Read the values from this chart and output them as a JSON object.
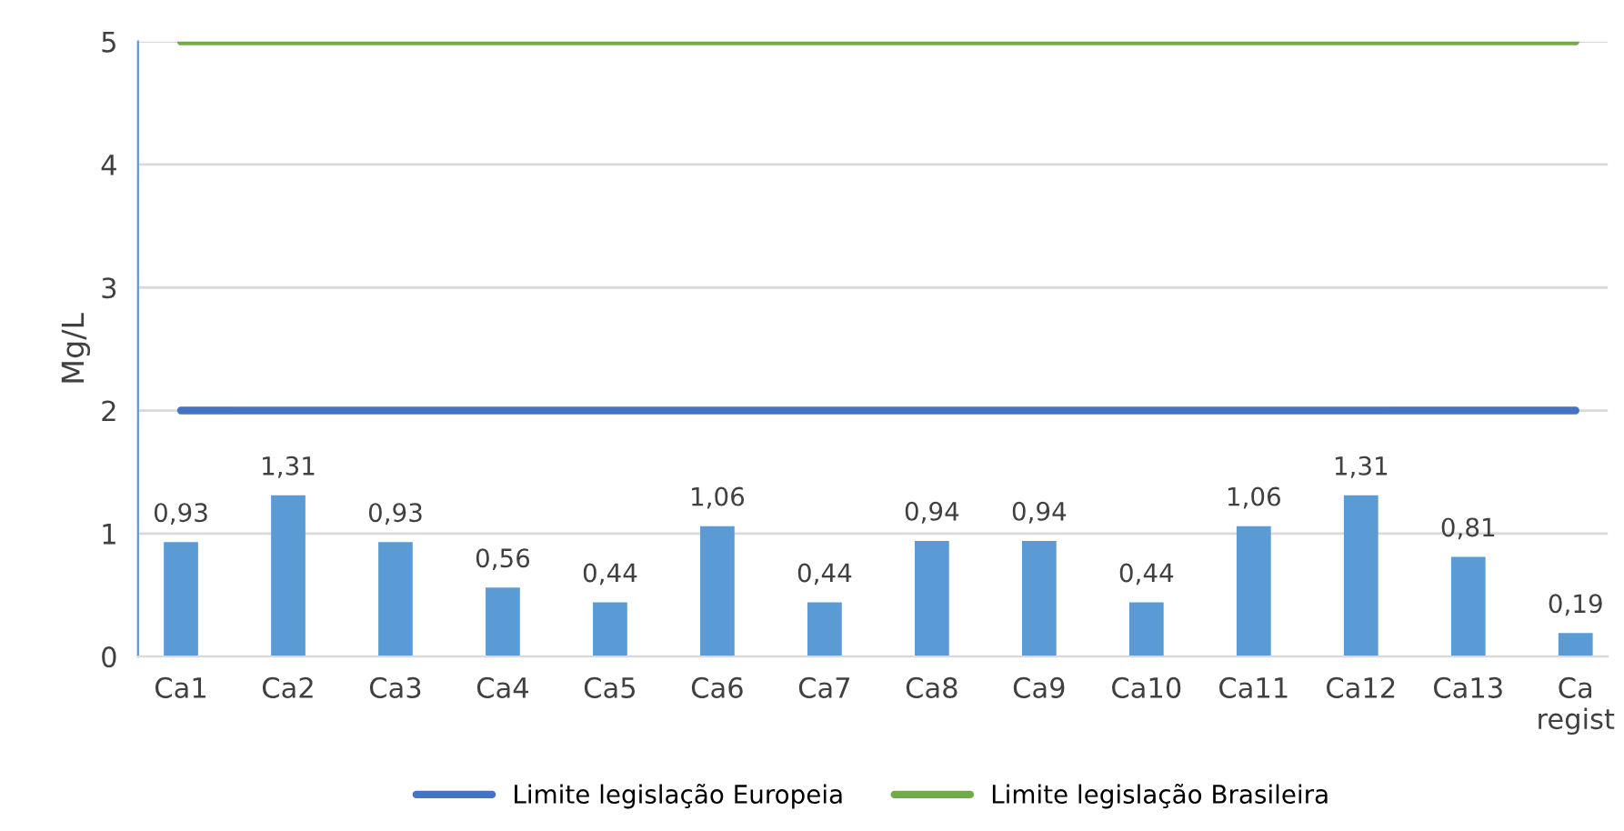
{
  "chart_data": {
    "type": "bar",
    "ylabel": "Mg/L",
    "categories": [
      "Ca1",
      "Ca2",
      "Ca3",
      "Ca4",
      "Ca5",
      "Ca6",
      "Ca7",
      "Ca8",
      "Ca9",
      "Ca10",
      "Ca11",
      "Ca12",
      "Ca13",
      "Ca\nregist"
    ],
    "series": [
      {
        "color": "#5b9bd5",
        "values": [
          0.93,
          1.31,
          0.93,
          0.56,
          0.44,
          1.06,
          0.44,
          0.94,
          0.94,
          0.44,
          1.06,
          1.31,
          0.81,
          0.19
        ],
        "value_labels": [
          "0,93",
          "1,31",
          "0,93",
          "0,56",
          "0,44",
          "1,06",
          "0,44",
          "0,94",
          "0,94",
          "0,44",
          "1,06",
          "1,31",
          "0,81",
          "0,19"
        ]
      },
      {
        "type": "line",
        "name": "Limite legislação Europeia",
        "color": "#4472c4",
        "values": [
          2,
          2,
          2,
          2,
          2,
          2,
          2,
          2,
          2,
          2,
          2,
          2,
          2,
          2
        ]
      },
      {
        "type": "line",
        "name": "Limite legislação Brasileira",
        "color": "#70ad47",
        "values": [
          5,
          5,
          5,
          5,
          5,
          5,
          5,
          5,
          5,
          5,
          5,
          5,
          5,
          5
        ]
      }
    ],
    "ylim": [
      0,
      5
    ],
    "yticks": [
      0,
      1,
      2,
      3,
      4,
      5
    ],
    "grid": "y",
    "legend": "bottom",
    "marker": "none",
    "line_style": "solid"
  }
}
